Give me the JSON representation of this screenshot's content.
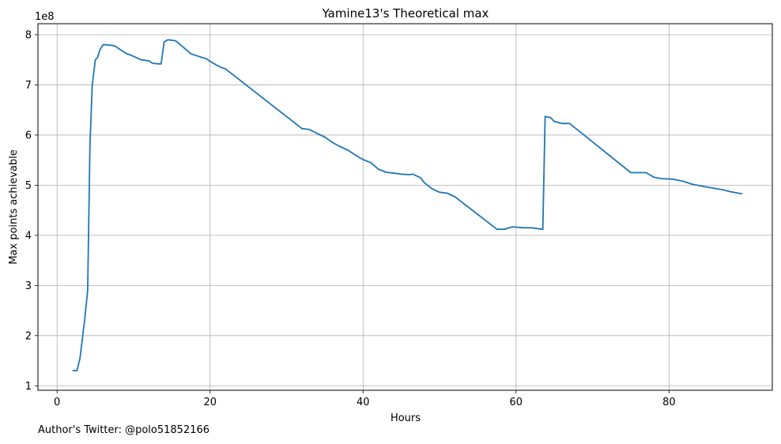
{
  "chart_data": {
    "type": "line",
    "title": "Yamine13's Theoretical max",
    "xlabel": "Hours",
    "ylabel": "Max points achievable",
    "y_offset_text": "1e8",
    "xlim": [
      -2.5,
      93.5
    ],
    "ylim": [
      0.91,
      8.22
    ],
    "x_ticks": [
      0,
      20,
      40,
      60,
      80
    ],
    "y_ticks": [
      1,
      2,
      3,
      4,
      5,
      6,
      7,
      8
    ],
    "grid": true,
    "line_color": "#1f77b4",
    "series": [
      {
        "x": [
          2.1,
          2.6,
          3.0,
          3.6,
          4.0,
          4.3,
          4.6,
          5.0,
          5.3,
          5.6,
          6.0,
          6.5,
          7.5,
          8.0,
          9.0,
          10.0,
          11.0,
          12.0,
          12.5,
          13.2,
          13.6,
          14.0,
          14.5,
          15.5,
          16.5,
          17.5,
          18.5,
          19.5,
          20.0,
          21.0,
          21.6,
          22.0,
          32.0,
          33.0,
          34.0,
          35.0,
          36.0,
          37.0,
          38.0,
          39.0,
          40.0,
          41.0,
          42.0,
          43.0,
          44.0,
          45.0,
          46.0,
          46.5,
          47.5,
          48.0,
          49.0,
          50.0,
          51.0,
          52.0,
          57.5,
          58.5,
          59.5,
          61.0,
          62.0,
          63.5,
          63.8,
          64.5,
          65.0,
          66.0,
          67.0,
          75.0,
          77.0,
          78.0,
          79.0,
          80.5,
          81.5,
          82.0,
          83.0,
          85.0,
          87.0,
          88.0,
          89.5
        ],
        "y": [
          1.3,
          1.3,
          1.55,
          2.3,
          2.9,
          5.8,
          7.0,
          7.5,
          7.55,
          7.7,
          7.8,
          7.8,
          7.78,
          7.73,
          7.63,
          7.57,
          7.5,
          7.48,
          7.43,
          7.42,
          7.42,
          7.86,
          7.9,
          7.88,
          7.75,
          7.62,
          7.57,
          7.52,
          7.47,
          7.38,
          7.34,
          7.32,
          6.13,
          6.11,
          6.03,
          5.96,
          5.85,
          5.77,
          5.7,
          5.6,
          5.51,
          5.45,
          5.32,
          5.26,
          5.24,
          5.22,
          5.21,
          5.22,
          5.15,
          5.05,
          4.93,
          4.86,
          4.84,
          4.77,
          4.12,
          4.12,
          4.17,
          4.15,
          4.15,
          4.12,
          6.37,
          6.35,
          6.27,
          6.23,
          6.23,
          5.25,
          5.25,
          5.16,
          5.13,
          5.12,
          5.09,
          5.07,
          5.02,
          4.96,
          4.91,
          4.87,
          4.83
        ]
      }
    ]
  },
  "footer": {
    "note": "Author's Twitter: @polo51852166"
  }
}
